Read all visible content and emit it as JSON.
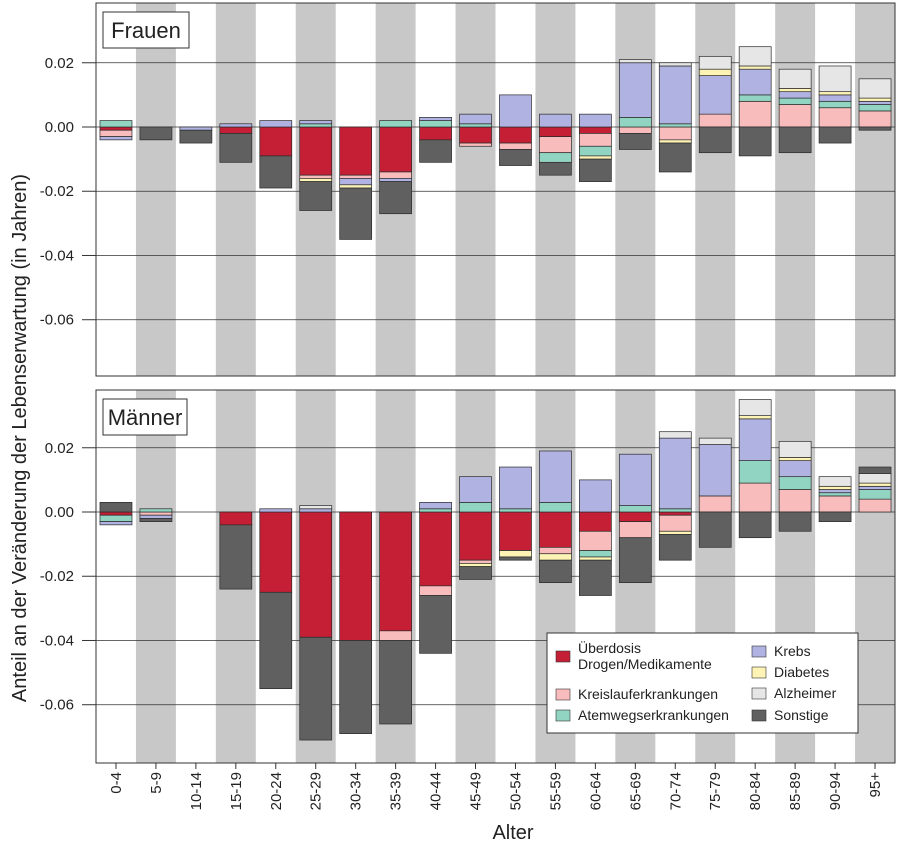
{
  "chart_data": {
    "type": "bar",
    "stacked": true,
    "ylabel": "Anteil an der Veränderung der Lebenserwartung (in Jahren)",
    "xlabel": "Alter",
    "categories": [
      "0-4",
      "5-9",
      "10-14",
      "15-19",
      "20-24",
      "25-29",
      "30-34",
      "35-39",
      "40-44",
      "45-49",
      "50-54",
      "55-59",
      "60-64",
      "65-69",
      "70-74",
      "75-79",
      "80-84",
      "85-89",
      "90-94",
      "95+"
    ],
    "ylim": [
      -0.078,
      0.036
    ],
    "yticks": [
      "0.02",
      "0.00",
      "-0.02",
      "-0.04",
      "-0.06"
    ],
    "ytick_values": [
      0.02,
      0.0,
      -0.02,
      -0.04,
      -0.06
    ],
    "grid": true,
    "legend_position": "bottom-right",
    "legend": [
      {
        "key": "ueberdosis",
        "label": "Überdosis\nDrogen/Medikamente",
        "color": "#c41f35"
      },
      {
        "key": "kreislauf",
        "label": "Kreislauferkrankungen",
        "color": "#f9bcbc"
      },
      {
        "key": "atemweg",
        "label": "Atemwegserkrankungen",
        "color": "#92d4c2"
      },
      {
        "key": "krebs",
        "label": "Krebs",
        "color": "#b0b2e2"
      },
      {
        "key": "diabetes",
        "label": "Diabetes",
        "color": "#fdf3b4"
      },
      {
        "key": "alzheimer",
        "label": "Alzheimer",
        "color": "#e6e6e6"
      },
      {
        "key": "sonstige",
        "label": "Sonstige",
        "color": "#606060"
      }
    ],
    "panels": [
      {
        "title": "Frauen",
        "series": [
          {
            "key": "ueberdosis",
            "values": [
              -0.001,
              0,
              0,
              -0.002,
              -0.009,
              -0.015,
              -0.015,
              -0.014,
              -0.004,
              -0.005,
              -0.005,
              -0.003,
              -0.002,
              0,
              0,
              0,
              0,
              0,
              0,
              0
            ]
          },
          {
            "key": "kreislauf",
            "values": [
              -0.002,
              0,
              0,
              0,
              0,
              -0.001,
              -0.001,
              -0.002,
              0,
              -0.001,
              -0.002,
              -0.005,
              -0.004,
              -0.002,
              -0.004,
              0.004,
              0.008,
              0.007,
              0.006,
              0.005
            ]
          },
          {
            "key": "atemweg",
            "values": [
              0.002,
              0,
              0,
              0,
              0,
              0.001,
              0,
              0.002,
              0.002,
              0.001,
              0,
              -0.003,
              -0.003,
              0.003,
              0.001,
              0,
              0.002,
              0.002,
              0.002,
              0.002
            ]
          },
          {
            "key": "krebs",
            "values": [
              -0.001,
              0,
              -0.001,
              0.001,
              0.002,
              0.001,
              -0.002,
              -0.001,
              0.001,
              0.003,
              0.01,
              0.004,
              0.004,
              0.017,
              0.018,
              0.012,
              0.008,
              0.002,
              0.002,
              0.001
            ]
          },
          {
            "key": "diabetes",
            "values": [
              0,
              0,
              0,
              0,
              0,
              -0.001,
              -0.001,
              0,
              0,
              0,
              0,
              0,
              -0.001,
              0,
              -0.001,
              0.002,
              0.001,
              0.001,
              0.001,
              0.001
            ]
          },
          {
            "key": "alzheimer",
            "values": [
              0,
              0,
              0,
              0,
              0,
              0,
              0,
              0,
              0,
              0,
              0,
              0,
              0,
              0.001,
              0.001,
              0.004,
              0.006,
              0.006,
              0.008,
              0.006
            ]
          },
          {
            "key": "sonstige",
            "values": [
              0,
              -0.004,
              -0.004,
              -0.009,
              -0.01,
              -0.009,
              -0.016,
              -0.01,
              -0.007,
              0,
              -0.005,
              -0.004,
              -0.007,
              -0.005,
              -0.009,
              -0.008,
              -0.009,
              -0.008,
              -0.005,
              -0.001
            ]
          }
        ]
      },
      {
        "title": "Männer",
        "series": [
          {
            "key": "ueberdosis",
            "values": [
              -0.001,
              0,
              0,
              -0.004,
              -0.025,
              -0.039,
              -0.04,
              -0.037,
              -0.023,
              -0.015,
              -0.012,
              -0.011,
              -0.006,
              -0.003,
              -0.001,
              0,
              0,
              0,
              0,
              0
            ]
          },
          {
            "key": "kreislauf",
            "values": [
              0,
              -0.001,
              0,
              0,
              0,
              0,
              0,
              -0.003,
              -0.003,
              -0.001,
              0,
              -0.002,
              -0.006,
              -0.005,
              -0.005,
              0.005,
              0.009,
              0.007,
              0.005,
              0.004
            ]
          },
          {
            "key": "atemweg",
            "values": [
              -0.002,
              0.001,
              0,
              0,
              0,
              0,
              0,
              0,
              0.001,
              0.003,
              0.001,
              0.003,
              -0.002,
              0.002,
              0.001,
              0,
              0.007,
              0.004,
              0.001,
              0.003
            ]
          },
          {
            "key": "krebs",
            "values": [
              -0.001,
              -0.001,
              0,
              0,
              0.001,
              0.001,
              0,
              0,
              0.002,
              0.008,
              0.013,
              0.016,
              0.01,
              0.016,
              0.022,
              0.016,
              0.013,
              0.005,
              0.001,
              0.001
            ]
          },
          {
            "key": "diabetes",
            "values": [
              0,
              0,
              0,
              0,
              0,
              0,
              0,
              0,
              0,
              -0.001,
              -0.002,
              -0.002,
              -0.001,
              0,
              -0.001,
              0,
              0.001,
              0.001,
              0.001,
              0.001
            ]
          },
          {
            "key": "alzheimer",
            "values": [
              0,
              0,
              0,
              0,
              0,
              0.001,
              0,
              0,
              0,
              0,
              0,
              0,
              0,
              0,
              0.002,
              0.002,
              0.005,
              0.005,
              0.003,
              0.003
            ]
          },
          {
            "key": "sonstige",
            "values": [
              0.003,
              -0.001,
              0,
              -0.02,
              -0.03,
              -0.032,
              -0.029,
              -0.026,
              -0.018,
              -0.004,
              -0.001,
              -0.007,
              -0.011,
              -0.014,
              -0.008,
              -0.011,
              -0.008,
              -0.006,
              -0.003,
              0.002
            ]
          }
        ]
      }
    ]
  }
}
